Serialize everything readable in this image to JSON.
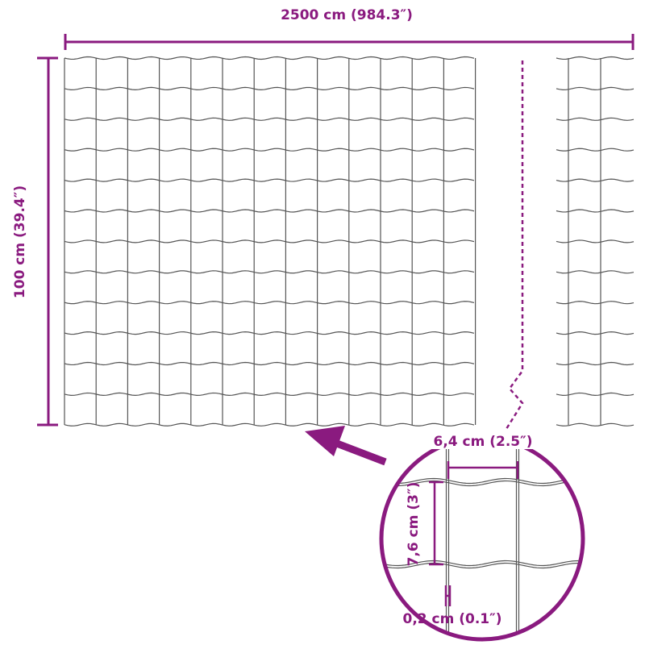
{
  "colors": {
    "accent": "#8a1a7f",
    "wire": "#555555"
  },
  "dimensions": {
    "width_label": "2500 cm (984.3″)",
    "height_label": "100 cm (39.4″)",
    "mesh_width_label": "6,4 cm (2.5″)",
    "mesh_height_label": "7,6 cm (3″)",
    "wire_thickness_label": "0,2 cm (0.1″)"
  }
}
